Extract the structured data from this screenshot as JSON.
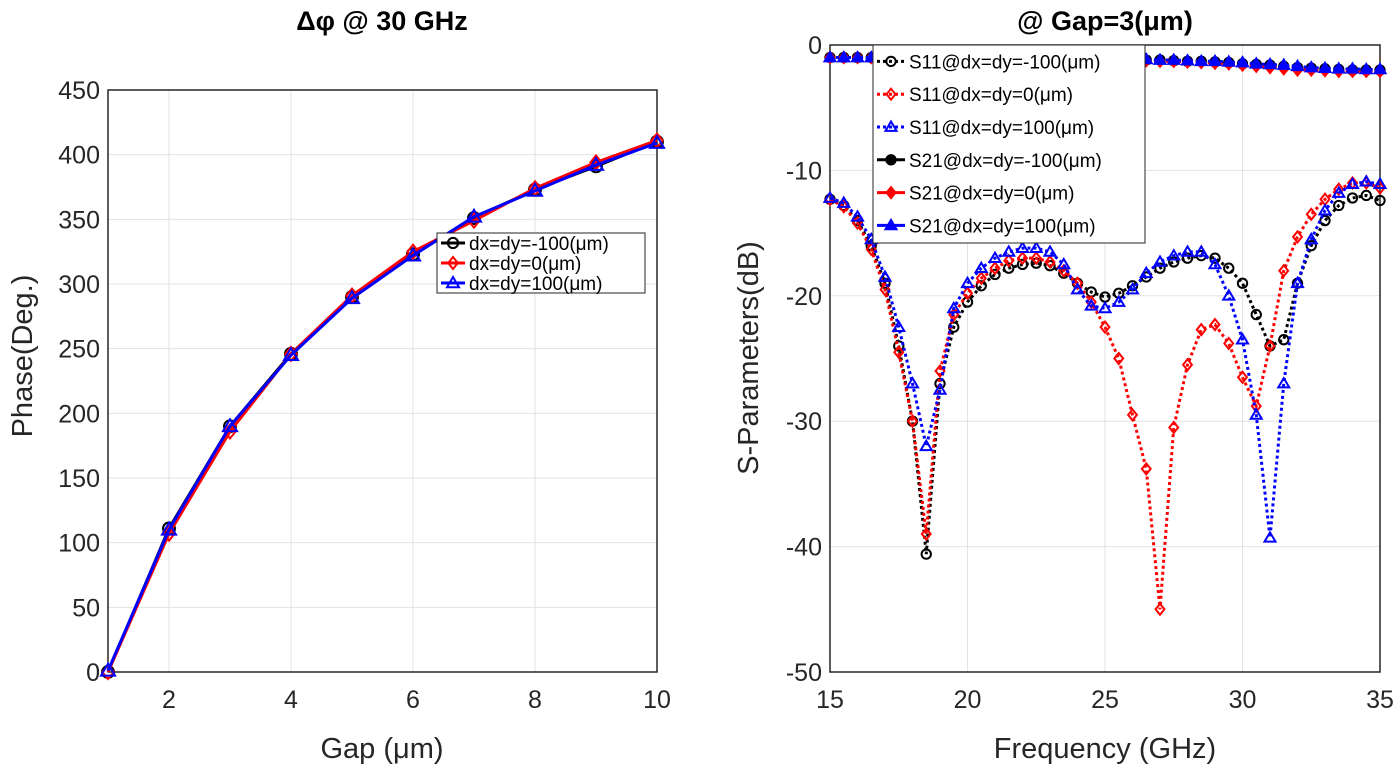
{
  "chart_data": [
    {
      "type": "line",
      "title": "Δφ @ 30 GHz",
      "xlabel": "Gap (μm)",
      "ylabel": "Phase(Deg.)",
      "xlim": [
        1,
        10
      ],
      "ylim": [
        0,
        450
      ],
      "xticks": [
        2,
        4,
        6,
        8,
        10
      ],
      "yticks": [
        0,
        50,
        100,
        150,
        200,
        250,
        300,
        350,
        400,
        450
      ],
      "grid": true,
      "legend_position": "center-right",
      "x": [
        1,
        2,
        3,
        4,
        5,
        6,
        7,
        8,
        9,
        10
      ],
      "series": [
        {
          "name": "dx=dy=-100(μm)",
          "color": "#000000",
          "marker": "circle",
          "line": "solid",
          "values": [
            0,
            111,
            190,
            246,
            290,
            323,
            351,
            373,
            391,
            410
          ]
        },
        {
          "name": "dx=dy=0(μm)",
          "color": "#ff0000",
          "marker": "diamond",
          "line": "solid",
          "values": [
            0,
            107,
            186,
            246,
            291,
            325,
            349,
            374,
            394,
            411
          ]
        },
        {
          "name": "dx=dy=100(μm)",
          "color": "#0000ff",
          "marker": "triangle",
          "line": "solid",
          "values": [
            1,
            110,
            190,
            245,
            289,
            322,
            352,
            372,
            392,
            409
          ]
        }
      ]
    },
    {
      "type": "line",
      "title": "@ Gap=3(μm)",
      "xlabel": "Frequency (GHz)",
      "ylabel": "S-Parameters(dB)",
      "xlim": [
        15,
        35
      ],
      "ylim": [
        -50,
        0
      ],
      "xticks": [
        15,
        20,
        25,
        30,
        35
      ],
      "yticks": [
        0,
        -10,
        -20,
        -30,
        -40,
        -50
      ],
      "grid": true,
      "legend_position": "top-left",
      "x": [
        15,
        15.5,
        16,
        16.5,
        17,
        17.5,
        18,
        18.5,
        19,
        19.5,
        20,
        20.5,
        21,
        21.5,
        22,
        22.5,
        23,
        23.5,
        24,
        24.5,
        25,
        25.5,
        26,
        26.5,
        27,
        27.5,
        28,
        28.5,
        29,
        29.5,
        30,
        30.5,
        31,
        31.5,
        32,
        32.5,
        33,
        33.5,
        34,
        34.5,
        35
      ],
      "series": [
        {
          "name": "S11@dx=dy=-100(μm)",
          "color": "#000000",
          "marker": "circle",
          "filled": false,
          "line": "dotted",
          "values": [
            -12.3,
            -12.8,
            -14,
            -16,
            -19,
            -24,
            -30,
            -40.6,
            -27,
            -22.5,
            -20.5,
            -19.2,
            -18.3,
            -17.8,
            -17.5,
            -17.4,
            -17.6,
            -18.2,
            -19,
            -19.7,
            -20.1,
            -19.8,
            -19.2,
            -18.5,
            -17.8,
            -17.3,
            -17,
            -16.8,
            -17,
            -17.8,
            -19,
            -21.5,
            -24,
            -23.5,
            -19,
            -16,
            -14,
            -12.8,
            -12.2,
            -12,
            -12.4
          ]
        },
        {
          "name": "S11@dx=dy=0(μm)",
          "color": "#ff0000",
          "marker": "diamond",
          "filled": false,
          "line": "dotted",
          "values": [
            -12.3,
            -12.9,
            -14.2,
            -16.3,
            -19.5,
            -24.5,
            -30,
            -39,
            -26,
            -21.5,
            -19.8,
            -18.6,
            -17.8,
            -17.2,
            -17,
            -17,
            -17.3,
            -18,
            -19,
            -20.5,
            -22.5,
            -25,
            -29.5,
            -33.8,
            -45,
            -30.5,
            -25.5,
            -22.7,
            -22.3,
            -23.8,
            -26.5,
            -28.8,
            -24,
            -18,
            -15.3,
            -13.5,
            -12.3,
            -11.5,
            -11,
            -11,
            -11.4
          ]
        },
        {
          "name": "S11@dx=dy=100(μm)",
          "color": "#0000ff",
          "marker": "triangle",
          "filled": false,
          "line": "dotted",
          "values": [
            -12.2,
            -12.6,
            -13.7,
            -15.5,
            -18.5,
            -22.5,
            -27,
            -32,
            -27.5,
            -21,
            -19,
            -17.8,
            -17,
            -16.5,
            -16.2,
            -16.2,
            -16.5,
            -17.5,
            -19.5,
            -20.8,
            -21,
            -20.5,
            -19.5,
            -18.2,
            -17.3,
            -16.8,
            -16.5,
            -16.5,
            -17.5,
            -20,
            -23.5,
            -29.5,
            -39.3,
            -27,
            -19,
            -15.5,
            -13.2,
            -11.8,
            -11.1,
            -10.9,
            -11.1
          ]
        },
        {
          "name": "S21@dx=dy=-100(μm)",
          "color": "#000000",
          "marker": "circle",
          "filled": true,
          "line": "dotted",
          "values": [
            -1,
            -1,
            -1,
            -1,
            -1,
            -1,
            -1,
            -1,
            -1,
            -1,
            -1,
            -1,
            -1,
            -1,
            -1,
            -1,
            -1,
            -1.05,
            -1.05,
            -1.1,
            -1.1,
            -1.1,
            -1.15,
            -1.2,
            -1.2,
            -1.25,
            -1.3,
            -1.3,
            -1.35,
            -1.4,
            -1.5,
            -1.55,
            -1.6,
            -1.7,
            -1.8,
            -1.85,
            -1.9,
            -1.95,
            -2,
            -2,
            -2
          ]
        },
        {
          "name": "S21@dx=dy=0(μm)",
          "color": "#ff0000",
          "marker": "diamond",
          "filled": true,
          "line": "dotted",
          "values": [
            -1,
            -1,
            -1,
            -1,
            -1,
            -1,
            -1,
            -1,
            -1,
            -1,
            -1,
            -1,
            -1,
            -1,
            -1,
            -1,
            -1,
            -1.05,
            -1.05,
            -1.1,
            -1.1,
            -1.15,
            -1.2,
            -1.25,
            -1.3,
            -1.3,
            -1.35,
            -1.4,
            -1.45,
            -1.5,
            -1.6,
            -1.7,
            -1.8,
            -1.9,
            -2,
            -2,
            -2.05,
            -2.1,
            -2.1,
            -2.1,
            -2.1
          ]
        },
        {
          "name": "S21@dx=dy=100(μm)",
          "color": "#0000ff",
          "marker": "triangle",
          "filled": true,
          "line": "dotted",
          "values": [
            -1,
            -1,
            -1,
            -1,
            -1,
            -1,
            -1,
            -1,
            -1,
            -1,
            -1,
            -1,
            -1,
            -1,
            -1,
            -1,
            -1,
            -1,
            -1.05,
            -1.05,
            -1.1,
            -1.1,
            -1.1,
            -1.15,
            -1.2,
            -1.2,
            -1.25,
            -1.3,
            -1.3,
            -1.35,
            -1.4,
            -1.5,
            -1.55,
            -1.6,
            -1.7,
            -1.8,
            -1.85,
            -1.9,
            -1.9,
            -1.95,
            -1.95
          ]
        }
      ]
    }
  ]
}
